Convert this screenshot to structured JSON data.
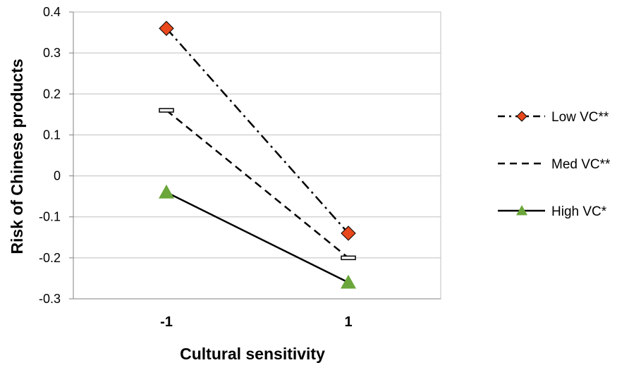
{
  "chart_data": {
    "type": "line",
    "title": "",
    "xlabel": "Cultural sensitivity",
    "ylabel": "Risk of Chinese products",
    "categories": [
      "-1",
      "1"
    ],
    "ylim": [
      -0.3,
      0.4
    ],
    "yticks": [
      "0.4",
      "0.3",
      "0.2",
      "0.1",
      "0",
      "-0.1",
      "-0.2",
      "-0.3"
    ],
    "grid": true,
    "legend_position": "right",
    "series": [
      {
        "name": "Low VC**",
        "values": [
          0.36,
          -0.14
        ],
        "line_style": "dash-dot",
        "marker": "diamond",
        "marker_color": "#E8481C",
        "line_color": "#000000"
      },
      {
        "name": "Med VC**",
        "values": [
          0.16,
          -0.2
        ],
        "line_style": "dashed",
        "marker": "dash",
        "marker_color": "#000000",
        "line_color": "#000000"
      },
      {
        "name": "High VC*",
        "values": [
          -0.04,
          -0.26
        ],
        "line_style": "solid",
        "marker": "triangle",
        "marker_color": "#6AA63A",
        "line_color": "#000000"
      }
    ]
  }
}
